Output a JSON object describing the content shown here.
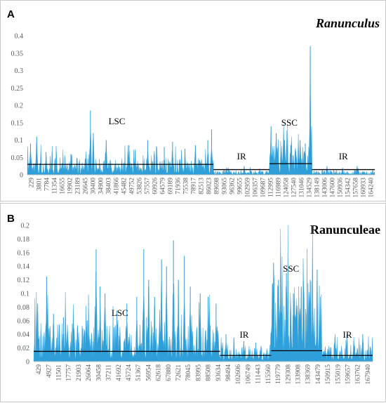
{
  "chart_data": [
    {
      "type": "bar",
      "panel_label": "A",
      "title": "Ranunculus",
      "title_italic": true,
      "ylim": [
        0,
        0.4
      ],
      "yticks": [
        "0",
        "0.05",
        "0.1",
        "0.15",
        "0.2",
        "0.25",
        "0.3",
        "0.35",
        "0.4"
      ],
      "xlim": [
        0,
        167500
      ],
      "xticks": [
        "229",
        "3801",
        "7784",
        "11354",
        "16655",
        "19902",
        "23189",
        "26645",
        "30400",
        "34900",
        "38403",
        "41866",
        "45482",
        "49752",
        "53826",
        "57557",
        "60926",
        "64579",
        "69189",
        "71936",
        "75538",
        "78917",
        "82513",
        "86023",
        "89698",
        "93065",
        "96362",
        "99655",
        "102959",
        "106357",
        "109687",
        "112995",
        "116989",
        "124058",
        "127540",
        "131046",
        "134529",
        "138149",
        "143006",
        "147600",
        "150936",
        "154342",
        "157658",
        "160933",
        "164240"
      ],
      "color": "#2e9fd9",
      "regions": [
        {
          "name": "LSC",
          "start": 0,
          "end": 89700,
          "mean": 0.03,
          "typical": 0.028,
          "peaks": [
            [
              1500,
              0.09
            ],
            [
              4500,
              0.11
            ],
            [
              9000,
              0.065
            ],
            [
              21000,
              0.06
            ],
            [
              30400,
              0.185
            ],
            [
              31800,
              0.12
            ],
            [
              38000,
              0.1
            ],
            [
              49000,
              0.085
            ],
            [
              52000,
              0.07
            ],
            [
              58000,
              0.1
            ],
            [
              66000,
              0.08
            ],
            [
              70000,
              0.095
            ],
            [
              76000,
              0.075
            ],
            [
              81000,
              0.085
            ],
            [
              87000,
              0.1
            ],
            [
              88800,
              0.13
            ]
          ]
        },
        {
          "name": "IR",
          "start": 89700,
          "end": 116800,
          "mean": 0.015,
          "typical": 0.007,
          "peaks": [
            [
              96000,
              0.02
            ],
            [
              104500,
              0.025
            ],
            [
              112000,
              0.018
            ]
          ]
        },
        {
          "name": "SSC",
          "start": 116800,
          "end": 137200,
          "mean": 0.032,
          "typical": 0.05,
          "peaks": [
            [
              117500,
              0.14
            ],
            [
              120000,
              0.12
            ],
            [
              124000,
              0.1
            ],
            [
              127000,
              0.085
            ],
            [
              131500,
              0.1
            ],
            [
              134000,
              0.09
            ],
            [
              136400,
              0.37
            ]
          ]
        },
        {
          "name": "IR",
          "start": 137200,
          "end": 167500,
          "mean": 0.015,
          "typical": 0.007,
          "peaks": [
            [
              144500,
              0.025
            ],
            [
              152000,
              0.02
            ],
            [
              159000,
              0.025
            ]
          ]
        }
      ]
    },
    {
      "type": "bar",
      "panel_label": "B",
      "title": "Ranunculeae",
      "title_italic": false,
      "ylim": [
        0,
        0.2
      ],
      "yticks": [
        "0",
        "0.02",
        "0.04",
        "0.06",
        "0.08",
        "0.1",
        "0.12",
        "0.14",
        "0.16",
        "0.18",
        "0.2"
      ],
      "xlim": [
        0,
        171000
      ],
      "xticks": [
        "429",
        "4927",
        "11501",
        "17757",
        "21903",
        "26064",
        "30458",
        "37211",
        "41692",
        "45724",
        "51367",
        "56954",
        "62618",
        "67880",
        "72621",
        "78045",
        "83995",
        "88508",
        "93634",
        "98494",
        "102606",
        "106749",
        "111443",
        "115560",
        "119779",
        "129308",
        "133908",
        "138369",
        "143479",
        "150915",
        "155019",
        "159657",
        "163762",
        "167940"
      ],
      "color": "#2e9fd9",
      "regions": [
        {
          "name": "LSC",
          "start": 0,
          "end": 94000,
          "mean": 0.015,
          "typical": 0.032,
          "peaks": [
            [
              2000,
              0.085
            ],
            [
              6500,
              0.125
            ],
            [
              10000,
              0.07
            ],
            [
              15000,
              0.065
            ],
            [
              20000,
              0.055
            ],
            [
              27000,
              0.06
            ],
            [
              31500,
              0.165
            ],
            [
              33500,
              0.11
            ],
            [
              36000,
              0.1
            ],
            [
              42000,
              0.075
            ],
            [
              47000,
              0.085
            ],
            [
              52000,
              0.095
            ],
            [
              55500,
              0.165
            ],
            [
              58000,
              0.12
            ],
            [
              61000,
              0.095
            ],
            [
              64500,
              0.15
            ],
            [
              67000,
              0.14
            ],
            [
              70500,
              0.178
            ],
            [
              73000,
              0.12
            ],
            [
              76000,
              0.155
            ],
            [
              79000,
              0.11
            ],
            [
              84000,
              0.1
            ],
            [
              88000,
              0.095
            ],
            [
              92000,
              0.085
            ]
          ]
        },
        {
          "name": "IR",
          "start": 94000,
          "end": 119800,
          "mean": 0.009,
          "typical": 0.014,
          "peaks": [
            [
              97000,
              0.04
            ],
            [
              101000,
              0.035
            ],
            [
              106000,
              0.03
            ],
            [
              112000,
              0.028
            ]
          ]
        },
        {
          "name": "SSC",
          "start": 119800,
          "end": 145500,
          "mean": 0.016,
          "typical": 0.07,
          "peaks": [
            [
              121000,
              0.145
            ],
            [
              123500,
              0.12
            ],
            [
              127500,
              0.13
            ],
            [
              131000,
              0.1
            ],
            [
              135000,
              0.11
            ],
            [
              139500,
              0.12
            ],
            [
              143000,
              0.135
            ]
          ]
        },
        {
          "name": "IR",
          "start": 145500,
          "end": 171000,
          "mean": 0.009,
          "typical": 0.014,
          "peaks": [
            [
              152000,
              0.035
            ],
            [
              158000,
              0.04
            ],
            [
              166000,
              0.04
            ]
          ]
        }
      ]
    }
  ]
}
